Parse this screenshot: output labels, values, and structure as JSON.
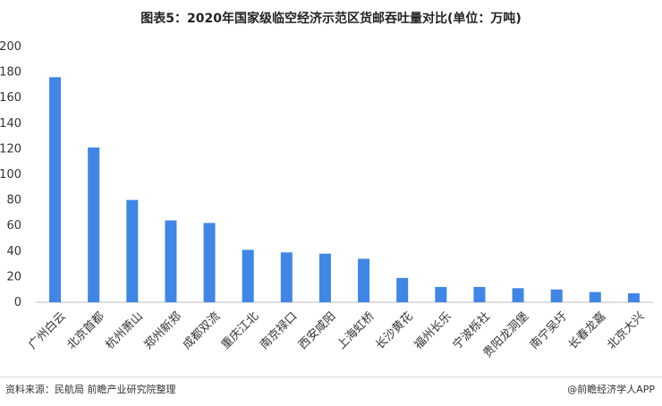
{
  "chart_data": {
    "type": "bar",
    "title": "图表5：2020年国家级临空经济示范区货邮吞吐量对比(单位：万吨)",
    "xlabel": "",
    "ylabel": "",
    "ylim": [
      0,
      200
    ],
    "yticks": [
      0,
      20,
      40,
      60,
      80,
      100,
      120,
      140,
      160,
      180,
      200
    ],
    "grid": false,
    "bar_color": "#3f86e6",
    "categories": [
      "广州白云",
      "北京首都",
      "杭州萧山",
      "郑州新郑",
      "成都双流",
      "重庆江北",
      "南京禄口",
      "西安咸阳",
      "上海虹桥",
      "长沙黄花",
      "福州长乐",
      "宁波栎社",
      "贵阳龙洞堡",
      "南宁吴圩",
      "长春龙嘉",
      "北京大兴"
    ],
    "values": [
      176,
      121,
      80,
      64,
      62,
      41,
      39,
      38,
      34,
      19,
      12,
      12,
      11,
      10,
      8,
      7
    ]
  },
  "footer": {
    "source": "资料来源：民航局 前瞻产业研究院整理",
    "brand": "@前瞻经济学人APP"
  }
}
